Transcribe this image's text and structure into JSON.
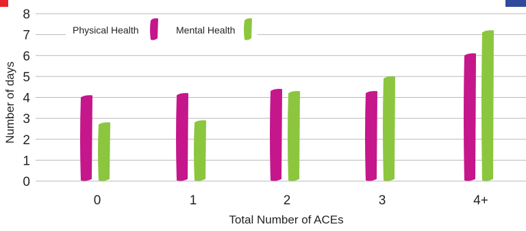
{
  "chart_data": {
    "type": "bar",
    "title": "",
    "xlabel": "Total Number of ACEs",
    "ylabel": "Number of days",
    "categories": [
      "0",
      "1",
      "2",
      "3",
      "4+"
    ],
    "ylim": [
      0,
      8
    ],
    "yticks": [
      "0",
      "1",
      "2",
      "3",
      "4",
      "5",
      "6",
      "7",
      "8"
    ],
    "grid": true,
    "legend": "top-left",
    "series": [
      {
        "name": "Physical Health",
        "color": "#c5168c",
        "values": [
          4.1,
          4.2,
          4.4,
          4.3,
          6.1
        ]
      },
      {
        "name": "Mental Health",
        "color": "#8cc63f",
        "values": [
          2.8,
          2.9,
          4.3,
          5.0,
          7.2
        ]
      }
    ]
  },
  "decor": {
    "edge_left_color": "#e8232a",
    "edge_right_color": "#2e4b9b"
  }
}
